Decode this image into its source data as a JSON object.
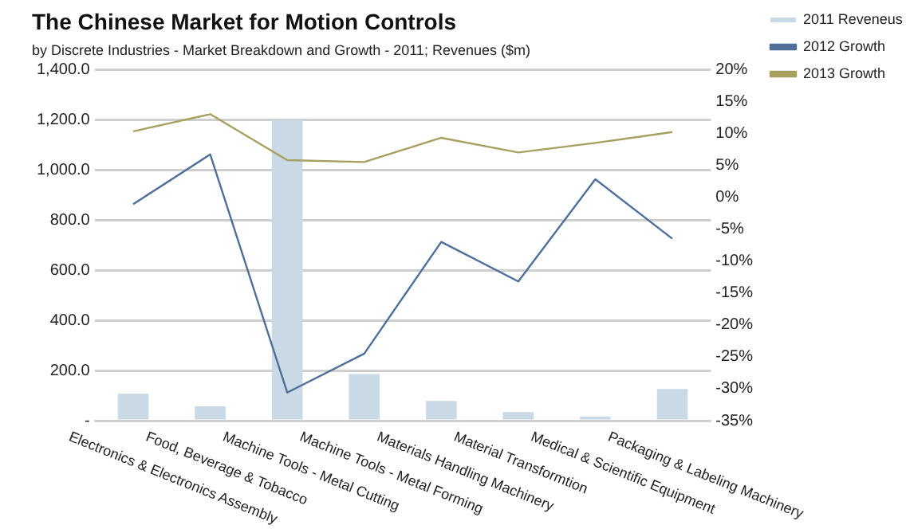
{
  "chart_data": {
    "type": "bar",
    "title": "The Chinese Market for Motion Controls",
    "subtitle": "by Discrete Industries - Market Breakdown and Growth - 2011; Revenues ($m)",
    "categories": [
      "Electronics & Electronics Assembly",
      "Food, Beverage & Tobacco",
      "Machine Tools - Metal Cutting",
      "Machine Tools - Metal Forming",
      "Materials Handling Machinery",
      "Material Transformtion",
      "Medical & Scientific Equipment",
      "Packaging & Labeling Machinery"
    ],
    "series": [
      {
        "name": "2011 Reveneus",
        "color": "#c9d9e5",
        "values": [
          107,
          57,
          1200,
          186,
          79,
          34,
          16,
          126
        ]
      },
      {
        "name": "2012 Growth",
        "type": "line",
        "axis": "y2",
        "color": "#4f6f99",
        "values": [
          -1.1,
          6.7,
          -30.6,
          -24.5,
          -7,
          -13.2,
          2.8,
          -6.5
        ]
      },
      {
        "name": "2013 Growth",
        "type": "line",
        "axis": "y2",
        "color": "#a8a060",
        "values": [
          10.3,
          13,
          5.8,
          5.5,
          9.3,
          7,
          8.5,
          10.2
        ]
      }
    ],
    "ylim": [
      0,
      1400
    ],
    "yticks": [
      {
        "value": 0,
        "label": "-"
      },
      {
        "value": 200,
        "label": "200.0"
      },
      {
        "value": 400,
        "label": "400.0"
      },
      {
        "value": 600,
        "label": "600.0"
      },
      {
        "value": 800,
        "label": "800.0"
      },
      {
        "value": 1000,
        "label": "1,000.0"
      },
      {
        "value": 1200,
        "label": "1,200.0"
      },
      {
        "value": 1400,
        "label": "1,400.0"
      }
    ],
    "y2lim": [
      -35,
      20
    ],
    "y2ticks": [
      {
        "value": -35,
        "label": "-35%"
      },
      {
        "value": -30,
        "label": "-30%"
      },
      {
        "value": -25,
        "label": "-25%"
      },
      {
        "value": -20,
        "label": "-20%"
      },
      {
        "value": -15,
        "label": "-15%"
      },
      {
        "value": -10,
        "label": "-10%"
      },
      {
        "value": -5,
        "label": "-5%"
      },
      {
        "value": 0,
        "label": "0%"
      },
      {
        "value": 5,
        "label": "5%"
      },
      {
        "value": 10,
        "label": "10%"
      },
      {
        "value": 15,
        "label": "15%"
      },
      {
        "value": 20,
        "label": "20%"
      }
    ],
    "grid": "y",
    "legend": "right",
    "marker": "none",
    "line_style": "solid"
  }
}
